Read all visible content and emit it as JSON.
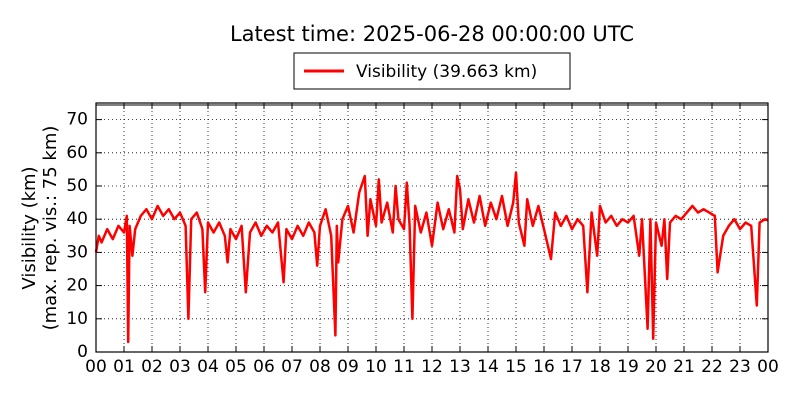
{
  "chart_data": {
    "type": "line",
    "title": "Latest time: 2025-06-28 00:00:00 UTC",
    "y_label_lines": [
      "Visibility (km)",
      "(max. rep. vis.: 75 km)"
    ],
    "xlim": [
      0,
      24
    ],
    "ylim": [
      0,
      75
    ],
    "yticks": [
      0,
      10,
      20,
      30,
      40,
      50,
      60,
      70
    ],
    "xticks": [
      {
        "value": 0,
        "label": "00"
      },
      {
        "value": 1,
        "label": "01"
      },
      {
        "value": 2,
        "label": "02"
      },
      {
        "value": 3,
        "label": "03"
      },
      {
        "value": 4,
        "label": "04"
      },
      {
        "value": 5,
        "label": "05"
      },
      {
        "value": 6,
        "label": "06"
      },
      {
        "value": 7,
        "label": "07"
      },
      {
        "value": 8,
        "label": "08"
      },
      {
        "value": 9,
        "label": "09"
      },
      {
        "value": 10,
        "label": "10"
      },
      {
        "value": 11,
        "label": "11"
      },
      {
        "value": 12,
        "label": "12"
      },
      {
        "value": 13,
        "label": "13"
      },
      {
        "value": 14,
        "label": "14"
      },
      {
        "value": 15,
        "label": "15"
      },
      {
        "value": 16,
        "label": "16"
      },
      {
        "value": 17,
        "label": "17"
      },
      {
        "value": 18,
        "label": "18"
      },
      {
        "value": 19,
        "label": "19"
      },
      {
        "value": 20,
        "label": "20"
      },
      {
        "value": 21,
        "label": "21"
      },
      {
        "value": 22,
        "label": "22"
      },
      {
        "value": 23,
        "label": "23"
      },
      {
        "value": 24,
        "label": "00"
      }
    ],
    "grid": true,
    "legend": "top",
    "x": [
      0.0,
      0.1,
      0.2,
      0.4,
      0.6,
      0.8,
      1.0,
      1.1,
      1.15,
      1.2,
      1.3,
      1.4,
      1.6,
      1.8,
      2.0,
      2.2,
      2.4,
      2.6,
      2.8,
      3.0,
      3.2,
      3.3,
      3.4,
      3.6,
      3.8,
      3.9,
      4.0,
      4.2,
      4.4,
      4.6,
      4.7,
      4.8,
      5.0,
      5.2,
      5.35,
      5.5,
      5.7,
      5.9,
      6.1,
      6.3,
      6.5,
      6.7,
      6.8,
      7.0,
      7.2,
      7.4,
      7.6,
      7.8,
      7.9,
      8.0,
      8.2,
      8.4,
      8.55,
      8.6,
      8.65,
      8.8,
      9.0,
      9.2,
      9.4,
      9.6,
      9.7,
      9.8,
      10.0,
      10.1,
      10.2,
      10.4,
      10.6,
      10.7,
      10.8,
      11.0,
      11.1,
      11.2,
      11.3,
      11.4,
      11.6,
      11.8,
      12.0,
      12.2,
      12.4,
      12.6,
      12.8,
      12.9,
      13.0,
      13.1,
      13.3,
      13.5,
      13.7,
      13.9,
      14.1,
      14.3,
      14.5,
      14.7,
      14.9,
      15.0,
      15.1,
      15.3,
      15.4,
      15.6,
      15.8,
      16.0,
      16.25,
      16.4,
      16.6,
      16.8,
      17.0,
      17.2,
      17.4,
      17.55,
      17.7,
      17.9,
      18.0,
      18.2,
      18.4,
      18.6,
      18.8,
      19.0,
      19.2,
      19.4,
      19.5,
      19.7,
      19.8,
      19.9,
      20.0,
      20.2,
      20.3,
      20.4,
      20.5,
      20.7,
      20.9,
      21.1,
      21.3,
      21.5,
      21.7,
      21.9,
      22.1,
      22.2,
      22.4,
      22.6,
      22.8,
      23.0,
      23.2,
      23.4,
      23.6,
      23.7,
      23.9,
      24.0
    ],
    "series": [
      {
        "name": "Visibility (39.663 km)",
        "color": "#ff0000",
        "values": [
          30,
          35,
          33,
          37,
          34,
          38,
          36,
          41,
          3,
          38,
          29,
          37,
          41,
          43,
          40,
          44,
          41,
          43,
          40,
          42,
          38,
          10,
          40,
          42,
          37,
          18,
          39,
          36,
          39,
          35,
          27,
          37,
          34,
          38,
          18,
          36,
          39,
          35,
          38,
          36,
          39,
          21,
          37,
          34,
          38,
          35,
          39,
          36,
          26,
          38,
          43,
          35,
          5,
          38,
          27,
          40,
          44,
          36,
          48,
          53,
          35,
          46,
          38,
          52,
          39,
          45,
          36,
          50,
          40,
          37,
          51,
          38,
          10,
          44,
          36,
          42,
          32,
          45,
          37,
          43,
          36,
          53,
          49,
          37,
          46,
          39,
          47,
          38,
          45,
          40,
          47,
          38,
          45,
          54,
          39,
          32,
          46,
          38,
          44,
          37,
          28,
          42,
          38,
          41,
          37,
          40,
          38,
          18,
          42,
          29,
          44,
          39,
          41,
          38,
          40,
          39,
          41,
          29,
          40,
          7,
          40,
          4,
          39,
          32,
          40,
          22,
          39,
          41,
          40,
          42,
          44,
          42,
          43,
          42,
          41,
          24,
          35,
          38,
          40,
          37,
          39,
          38,
          14,
          39,
          40,
          39.663
        ]
      }
    ]
  }
}
